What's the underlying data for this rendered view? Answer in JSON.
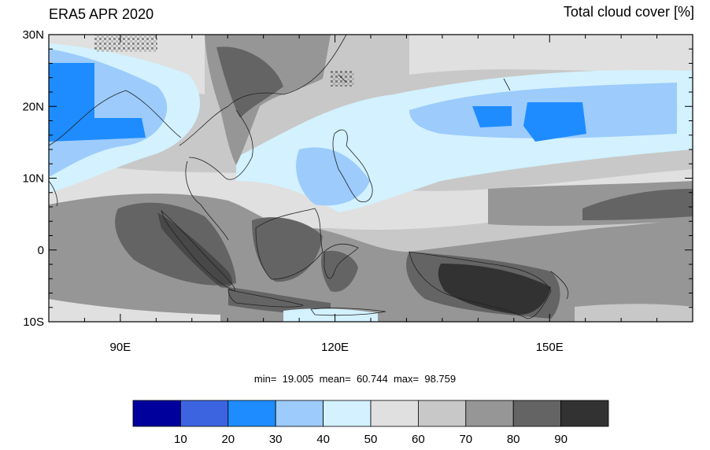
{
  "header": {
    "title_left": "ERA5 APR 2020",
    "title_right": "Total cloud cover [%]"
  },
  "axes": {
    "y_ticks": [
      {
        "value": 30,
        "label": "30N"
      },
      {
        "value": 20,
        "label": "20N"
      },
      {
        "value": 10,
        "label": "10N"
      },
      {
        "value": 0,
        "label": "0"
      },
      {
        "value": -10,
        "label": "10S"
      }
    ],
    "x_ticks": [
      {
        "value": 90,
        "label": "90E"
      },
      {
        "value": 120,
        "label": "120E"
      },
      {
        "value": 150,
        "label": "150E"
      }
    ],
    "lon_range": [
      80,
      170
    ],
    "lat_range": [
      -10,
      30
    ]
  },
  "stats": {
    "text": "min=  19.005  mean=  60.744  max=  98.759"
  },
  "colorbar": {
    "colors": [
      "#00009c",
      "#3c64e1",
      "#1e8cff",
      "#9ccbfc",
      "#d3f1fe",
      "#e0e0e0",
      "#c8c8c8",
      "#969696",
      "#646464",
      "#323232"
    ],
    "labels": [
      "10",
      "20",
      "30",
      "40",
      "50",
      "60",
      "70",
      "80",
      "90"
    ]
  }
}
